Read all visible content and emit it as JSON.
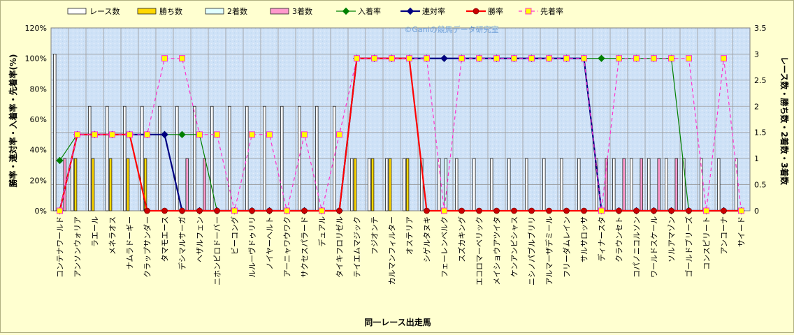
{
  "chart_data": {
    "type": "bar+line",
    "credit": "©Ganiの競馬データ研究室",
    "xlabel": "同一レース出走馬",
    "ylabel_left": "勝率・連対率・入着率・先着率(%)",
    "ylabel_right": "レース数・勝ち数・2着数・3着数",
    "yleft_range": [
      0,
      120
    ],
    "yright_range": [
      0,
      3.5
    ],
    "yleft_ticks": [
      "0%",
      "20%",
      "40%",
      "60%",
      "80%",
      "100%",
      "120%"
    ],
    "yright_ticks": [
      "0",
      "0.5",
      "1",
      "1.5",
      "2",
      "2.5",
      "3",
      "3.5"
    ],
    "grid": true,
    "legend_position": "top",
    "colors": {
      "races": "#ffffff",
      "wins": "#ffd700",
      "second": "#e0ffff",
      "third": "#ff99cc",
      "place_rate": "#008000",
      "top2_rate": "#000080",
      "win_rate": "#ff0000",
      "beat_rate": "#ff33cc"
    },
    "legend": [
      "レース数",
      "勝ち数",
      "2着数",
      "3着数",
      "入着率",
      "連対率",
      "勝率",
      "先着率"
    ],
    "categories": [
      "コンテナワールド",
      "アンソンウォリア",
      "ラエール",
      "メネラオス",
      "ナムラドーギー",
      "クラップサンダー",
      "タマモエース",
      "デシマルサーガ",
      "ヘザルフェン",
      "ニホンピロドーバー",
      "ビーコング",
      "ルルーヴドゥリリ",
      "ノイヤーヘルト",
      "アーニャワウワク",
      "サクセスパラード",
      "デュアル",
      "タイキフロリゼル",
      "テイエムマジック",
      "フジオンテ",
      "カルマンフィルター",
      "オステリア",
      "シゲルタヌキ",
      "フェーレンベルク",
      "スズカキング",
      "エコロマーベリック",
      "メイショウアツイタ",
      "ケンアンビシャス",
      "ニシノパブルブリリ",
      "アルマーザデミール",
      "フリーダムレイン",
      "サルサロッサ",
      "ディナースタ",
      "クラウンセト",
      "コパノニコルソン",
      "ワールドスケール",
      "ソルアマゾン",
      "ゴールドブリーズ",
      "コンスピリート",
      "アンコーナ",
      "サイード"
    ],
    "series": [
      {
        "name": "レース数",
        "axis": "right",
        "values": [
          3,
          1,
          2,
          2,
          2,
          2,
          2,
          2,
          2,
          2,
          2,
          2,
          2,
          2,
          2,
          2,
          2,
          1,
          1,
          1,
          1,
          1,
          1,
          1,
          1,
          1,
          1,
          1,
          1,
          1,
          1,
          1,
          1,
          1,
          1,
          1,
          1,
          1,
          1,
          1
        ]
      },
      {
        "name": "勝ち数",
        "axis": "right",
        "values": [
          0,
          1,
          1,
          1,
          1,
          1,
          0,
          0,
          0,
          0,
          0,
          0,
          0,
          0,
          0,
          0,
          0,
          1,
          1,
          1,
          1,
          0,
          0,
          0,
          0,
          0,
          0,
          0,
          0,
          0,
          0,
          0,
          0,
          0,
          0,
          0,
          0,
          0,
          0,
          0
        ]
      },
      {
        "name": "2着数",
        "axis": "right",
        "values": [
          0,
          0,
          0,
          0,
          0,
          0,
          0,
          0,
          0,
          0,
          0,
          0,
          0,
          0,
          0,
          0,
          0,
          0,
          0,
          0,
          0,
          0,
          1,
          0,
          0,
          0,
          0,
          0,
          0,
          0,
          0,
          0,
          0,
          0,
          0,
          0,
          0,
          0,
          0,
          0
        ]
      },
      {
        "name": "3着数",
        "axis": "right",
        "values": [
          1,
          0,
          0,
          0,
          0,
          0,
          0,
          1,
          1,
          0,
          0,
          0,
          0,
          0,
          0,
          0,
          0,
          0,
          0,
          0,
          0,
          0,
          0,
          0,
          0,
          0,
          0,
          0,
          0,
          0,
          0,
          1,
          1,
          1,
          1,
          1,
          0,
          0,
          0,
          0
        ]
      },
      {
        "name": "入着率",
        "axis": "left",
        "values": [
          33,
          50,
          50,
          50,
          50,
          50,
          50,
          50,
          50,
          0,
          0,
          0,
          0,
          0,
          0,
          0,
          0,
          100,
          100,
          100,
          100,
          100,
          100,
          100,
          100,
          100,
          100,
          100,
          100,
          100,
          100,
          100,
          100,
          100,
          100,
          100,
          0,
          0,
          0,
          0
        ]
      },
      {
        "name": "連対率",
        "axis": "left",
        "values": [
          0,
          50,
          50,
          50,
          50,
          50,
          50,
          0,
          0,
          0,
          0,
          0,
          0,
          0,
          0,
          0,
          0,
          100,
          100,
          100,
          100,
          100,
          100,
          100,
          100,
          100,
          100,
          100,
          100,
          100,
          100,
          0,
          0,
          0,
          0,
          0,
          0,
          0,
          0,
          0
        ]
      },
      {
        "name": "勝率",
        "axis": "left",
        "values": [
          0,
          50,
          50,
          50,
          50,
          0,
          0,
          0,
          0,
          0,
          0,
          0,
          0,
          0,
          0,
          0,
          0,
          100,
          100,
          100,
          100,
          0,
          0,
          0,
          0,
          0,
          0,
          0,
          0,
          0,
          0,
          0,
          0,
          0,
          0,
          0,
          0,
          0,
          0,
          0
        ]
      },
      {
        "name": "先着率",
        "axis": "left",
        "values": [
          0,
          50,
          50,
          50,
          50,
          50,
          100,
          100,
          50,
          50,
          0,
          50,
          50,
          0,
          50,
          0,
          50,
          100,
          100,
          100,
          100,
          100,
          0,
          100,
          100,
          100,
          100,
          100,
          100,
          100,
          100,
          0,
          100,
          100,
          100,
          100,
          100,
          0,
          100,
          0
        ]
      }
    ]
  }
}
